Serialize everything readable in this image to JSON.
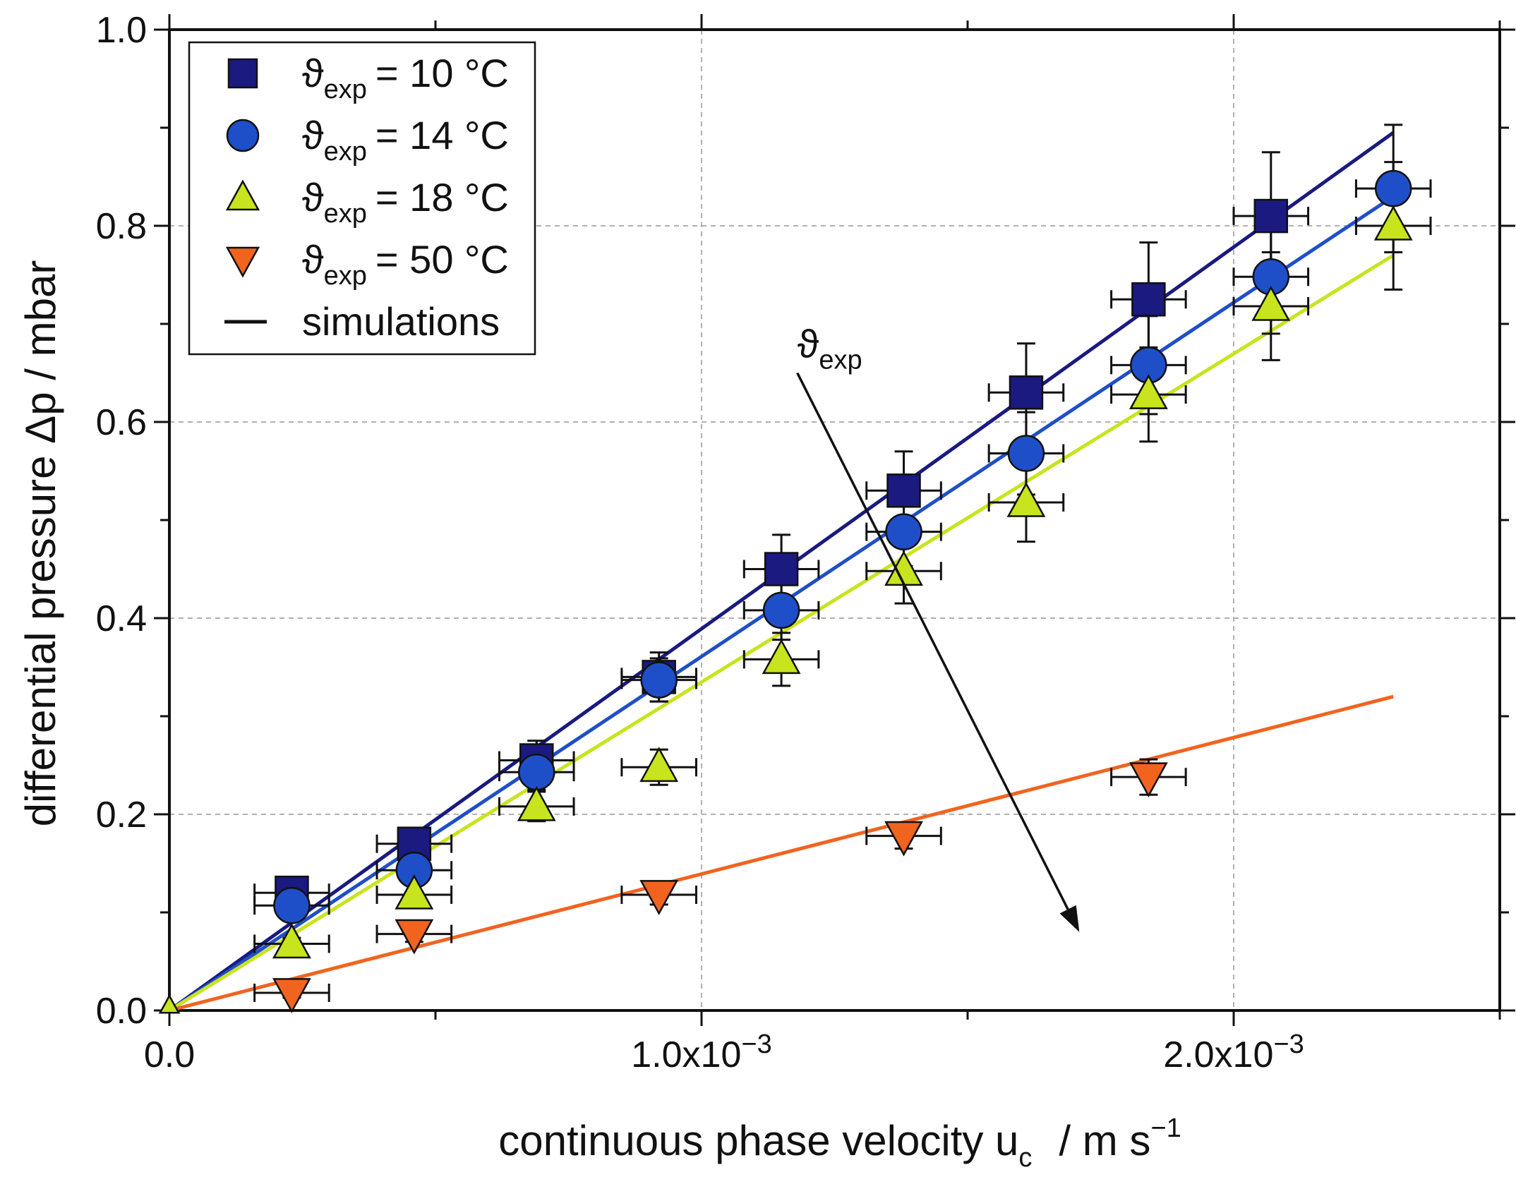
{
  "chart_data": {
    "type": "scatter",
    "title": "",
    "xlabel": {
      "main": "continuous phase velocity u",
      "sub": "c",
      "unit": "/  m s",
      "sup": "−1"
    },
    "ylabel": "differential pressure Δp  /  mbar",
    "xlim": [
      0,
      0.0025
    ],
    "ylim": [
      0,
      1.0
    ],
    "grid": true,
    "x_ticks": [
      {
        "value": 0,
        "label": "0.0"
      },
      {
        "value": 0.001,
        "label": "1.0x10",
        "sup": "−3"
      },
      {
        "value": 0.002,
        "label": "2.0x10",
        "sup": "−3"
      }
    ],
    "y_ticks": [
      {
        "value": 0.0,
        "label": "0.0"
      },
      {
        "value": 0.2,
        "label": "0.2"
      },
      {
        "value": 0.4,
        "label": "0.4"
      },
      {
        "value": 0.6,
        "label": "0.6"
      },
      {
        "value": 0.8,
        "label": "0.8"
      },
      {
        "value": 1.0,
        "label": "1.0"
      }
    ],
    "legend": {
      "position": "top-left",
      "symbol": "ϑ",
      "subscript": "exp",
      "simulations_label": "simulations"
    },
    "series": [
      {
        "name": "10 °C",
        "label_suffix": "= 10 °C",
        "marker": "square",
        "color": "#1a1a80",
        "x": [
          0.00023,
          0.00046,
          0.00069,
          0.00092,
          0.00115,
          0.00138,
          0.00161,
          0.00184,
          0.00207
        ],
        "y": [
          0.12,
          0.17,
          0.255,
          0.34,
          0.45,
          0.53,
          0.63,
          0.725,
          0.81
        ],
        "yerr": [
          0.01,
          0.015,
          0.02,
          0.025,
          0.035,
          0.04,
          0.05,
          0.058,
          0.065
        ],
        "xerr": 7e-05
      },
      {
        "name": "14 °C",
        "label_suffix": "= 14 °C",
        "marker": "circle",
        "color": "#1f4fc8",
        "x": [
          0.00023,
          0.00046,
          0.00069,
          0.00092,
          0.00115,
          0.00138,
          0.00161,
          0.00184,
          0.00207,
          0.0023
        ],
        "y": [
          0.107,
          0.143,
          0.243,
          0.337,
          0.408,
          0.488,
          0.568,
          0.658,
          0.748,
          0.838
        ],
        "yerr": [
          0.008,
          0.012,
          0.018,
          0.022,
          0.03,
          0.035,
          0.042,
          0.05,
          0.058,
          0.065
        ],
        "xerr": 7e-05
      },
      {
        "name": "18 °C",
        "label_suffix": "= 18 °C",
        "marker": "triangle-up",
        "color": "#c8e41e",
        "x": [
          0.00023,
          0.00046,
          0.00069,
          0.00092,
          0.00115,
          0.00138,
          0.00161,
          0.00184,
          0.00207,
          0.0023
        ],
        "y": [
          0.068,
          0.118,
          0.208,
          0.248,
          0.358,
          0.448,
          0.518,
          0.628,
          0.718,
          0.8
        ],
        "yerr": [
          0.006,
          0.01,
          0.015,
          0.018,
          0.027,
          0.033,
          0.04,
          0.048,
          0.055,
          0.065
        ],
        "xerr": 7e-05
      },
      {
        "name": "50 °C",
        "label_suffix": "= 50 °C",
        "marker": "triangle-down",
        "color": "#f06420",
        "x": [
          0.00023,
          0.00046,
          0.00092,
          0.00138,
          0.00184
        ],
        "y": [
          0.018,
          0.078,
          0.118,
          0.178,
          0.238
        ],
        "yerr": [
          0.005,
          0.008,
          0.01,
          0.013,
          0.018
        ],
        "xerr": 7e-05
      }
    ],
    "simulations": [
      {
        "name": "10 °C",
        "color": "#1a1a80",
        "x": [
          0,
          0.0023
        ],
        "y": [
          0,
          0.895
        ]
      },
      {
        "name": "14 °C",
        "color": "#1f4fc8",
        "x": [
          0,
          0.0023
        ],
        "y": [
          0,
          0.83
        ]
      },
      {
        "name": "18 °C",
        "color": "#c8e41e",
        "x": [
          0,
          0.0023
        ],
        "y": [
          0,
          0.77
        ]
      },
      {
        "name": "50 °C",
        "color": "#f06420",
        "x": [
          0,
          0.0023
        ],
        "y": [
          0,
          0.32
        ]
      }
    ],
    "origin_point": {
      "x": 0,
      "y": 0.005
    },
    "annotation": {
      "symbol": "ϑ",
      "subscript": "exp",
      "arrow_from": {
        "x": 0.00118,
        "y": 0.65
      },
      "arrow_to": {
        "x": 0.00171,
        "y": 0.08
      }
    }
  }
}
